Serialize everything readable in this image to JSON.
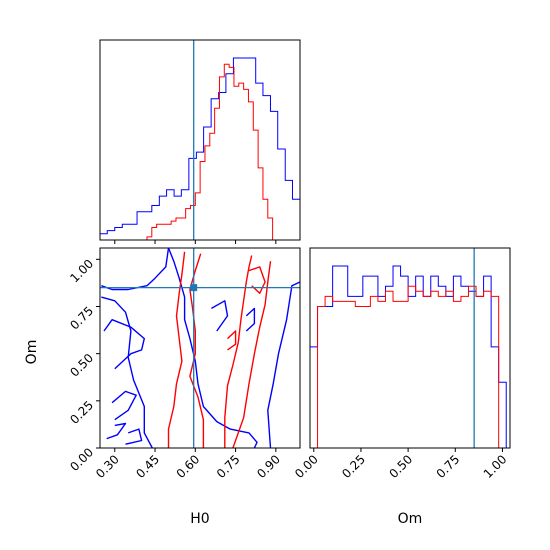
{
  "chart_data": [
    {
      "type": "histogram",
      "panel": "H0 marginal",
      "xlim": [
        0.245,
        0.99
      ],
      "truth": 0.594,
      "x_ticks": [
        "0.30",
        "0.45",
        "0.60",
        "0.75",
        "0.90"
      ],
      "series": [
        {
          "color": "#0000ff",
          "edges": [
            0.245,
            0.272,
            0.3,
            0.328,
            0.355,
            0.383,
            0.41,
            0.438,
            0.466,
            0.493,
            0.521,
            0.548,
            0.576,
            0.604,
            0.631,
            0.659,
            0.687,
            0.714,
            0.742,
            0.769,
            0.797,
            0.825,
            0.852,
            0.88,
            0.907,
            0.935,
            0.962,
            0.99
          ],
          "counts": [
            2,
            3,
            4,
            5,
            5,
            9,
            9,
            11,
            14,
            16,
            14,
            16,
            26,
            28,
            36,
            45,
            47,
            53,
            58,
            58,
            58,
            50,
            46,
            41,
            29,
            19,
            13
          ]
        },
        {
          "color": "#ff0000",
          "edges": [
            0.42,
            0.438,
            0.456,
            0.474,
            0.492,
            0.51,
            0.528,
            0.546,
            0.564,
            0.582,
            0.6,
            0.618,
            0.636,
            0.654,
            0.672,
            0.69,
            0.708,
            0.726,
            0.744,
            0.762,
            0.78,
            0.798,
            0.816,
            0.834,
            0.852,
            0.87,
            0.888
          ],
          "counts": [
            1,
            4,
            5,
            5,
            5,
            6,
            7,
            7,
            10,
            11,
            15,
            25,
            30,
            34,
            42,
            52,
            56,
            55,
            49,
            50,
            48,
            44,
            35,
            23,
            13,
            7
          ]
        }
      ]
    },
    {
      "type": "contour",
      "panel": "H0 vs Om",
      "xlabel": "H0",
      "ylabel": "Om",
      "xlim": [
        0.245,
        0.99
      ],
      "ylim": [
        0.0,
        1.06
      ],
      "x_ticks": [
        "0.30",
        "0.45",
        "0.60",
        "0.75",
        "0.90"
      ],
      "y_ticks": [
        "0.00",
        "0.25",
        "0.50",
        "0.75",
        "1.00"
      ],
      "truth": {
        "x": 0.594,
        "y": 0.85
      },
      "series": [
        {
          "color": "#0000ff",
          "contours": [
            [
              [
                0.25,
                0.86
              ],
              [
                0.29,
                0.84
              ],
              [
                0.35,
                0.84
              ],
              [
                0.42,
                0.86
              ],
              [
                0.45,
                0.9
              ],
              [
                0.49,
                0.96
              ],
              [
                0.5,
                1.06
              ]
            ],
            [
              [
                0.5,
                1.06
              ],
              [
                0.52,
                0.99
              ],
              [
                0.54,
                0.9
              ],
              [
                0.56,
                0.8
              ],
              [
                0.56,
                0.68
              ],
              [
                0.58,
                0.58
              ],
              [
                0.6,
                0.46
              ],
              [
                0.61,
                0.34
              ],
              [
                0.63,
                0.22
              ],
              [
                0.68,
                0.14
              ],
              [
                0.73,
                0.1
              ],
              [
                0.8,
                0.08
              ],
              [
                0.83,
                0.03
              ],
              [
                0.82,
                0.0
              ]
            ],
            [
              [
                0.25,
                0.8
              ],
              [
                0.3,
                0.78
              ],
              [
                0.34,
                0.72
              ],
              [
                0.36,
                0.62
              ],
              [
                0.35,
                0.48
              ],
              [
                0.37,
                0.36
              ],
              [
                0.41,
                0.22
              ],
              [
                0.41,
                0.08
              ],
              [
                0.44,
                0.0
              ]
            ],
            [
              [
                0.88,
                0.0
              ],
              [
                0.87,
                0.2
              ],
              [
                0.89,
                0.34
              ],
              [
                0.91,
                0.5
              ],
              [
                0.94,
                0.68
              ],
              [
                0.96,
                0.86
              ],
              [
                0.99,
                0.88
              ]
            ],
            [
              [
                0.3,
                0.42
              ],
              [
                0.36,
                0.5
              ],
              [
                0.4,
                0.52
              ],
              [
                0.41,
                0.58
              ],
              [
                0.36,
                0.64
              ],
              [
                0.29,
                0.68
              ],
              [
                0.26,
                0.62
              ]
            ],
            [
              [
                0.3,
                0.15
              ],
              [
                0.35,
                0.2
              ],
              [
                0.38,
                0.28
              ],
              [
                0.34,
                0.3
              ],
              [
                0.29,
                0.24
              ]
            ],
            [
              [
                0.27,
                0.05
              ],
              [
                0.31,
                0.07
              ],
              [
                0.34,
                0.13
              ],
              [
                0.3,
                0.12
              ]
            ],
            [
              [
                0.34,
                0.02
              ],
              [
                0.4,
                0.04
              ],
              [
                0.39,
                0.1
              ],
              [
                0.35,
                0.08
              ]
            ],
            [
              [
                0.68,
                0.62
              ],
              [
                0.72,
                0.7
              ],
              [
                0.71,
                0.78
              ],
              [
                0.66,
                0.74
              ]
            ],
            [
              [
                0.79,
                0.62
              ],
              [
                0.82,
                0.66
              ],
              [
                0.82,
                0.74
              ],
              [
                0.79,
                0.7
              ]
            ]
          ]
        },
        {
          "color": "#ff0000",
          "contours": [
            [
              [
                0.5,
                0.0
              ],
              [
                0.5,
                0.1
              ],
              [
                0.52,
                0.22
              ],
              [
                0.53,
                0.34
              ],
              [
                0.55,
                0.46
              ],
              [
                0.54,
                0.58
              ],
              [
                0.53,
                0.7
              ],
              [
                0.54,
                0.82
              ],
              [
                0.55,
                0.92
              ],
              [
                0.56,
                1.04
              ]
            ],
            [
              [
                0.62,
                1.03
              ],
              [
                0.6,
                0.94
              ],
              [
                0.58,
                0.84
              ],
              [
                0.59,
                0.74
              ],
              [
                0.6,
                0.62
              ],
              [
                0.6,
                0.5
              ],
              [
                0.58,
                0.38
              ],
              [
                0.61,
                0.27
              ],
              [
                0.63,
                0.15
              ],
              [
                0.63,
                0.05
              ],
              [
                0.63,
                0.0
              ]
            ],
            [
              [
                0.71,
                0.0
              ],
              [
                0.71,
                0.16
              ],
              [
                0.72,
                0.33
              ],
              [
                0.74,
                0.44
              ],
              [
                0.76,
                0.56
              ],
              [
                0.77,
                0.68
              ],
              [
                0.78,
                0.78
              ],
              [
                0.79,
                0.88
              ],
              [
                0.8,
                0.96
              ],
              [
                0.81,
                1.02
              ]
            ],
            [
              [
                0.74,
                0.0
              ],
              [
                0.78,
                0.16
              ],
              [
                0.8,
                0.34
              ],
              [
                0.82,
                0.5
              ],
              [
                0.84,
                0.64
              ],
              [
                0.86,
                0.76
              ],
              [
                0.87,
                0.88
              ],
              [
                0.88,
                0.99
              ]
            ],
            [
              [
                0.8,
                0.94
              ],
              [
                0.84,
                0.96
              ],
              [
                0.86,
                0.88
              ],
              [
                0.84,
                0.82
              ],
              [
                0.81,
                0.86
              ]
            ],
            [
              [
                0.72,
                0.52
              ],
              [
                0.75,
                0.55
              ],
              [
                0.75,
                0.62
              ],
              [
                0.72,
                0.58
              ]
            ]
          ]
        }
      ]
    },
    {
      "type": "histogram",
      "panel": "Om marginal",
      "xlabel": "Om",
      "xlim": [
        -0.02,
        1.04
      ],
      "truth": 0.85,
      "x_ticks": [
        "0.00",
        "0.25",
        "0.50",
        "0.75",
        "1.00"
      ],
      "series": [
        {
          "color": "#0000ff",
          "edges": [
            -0.02,
            0.02,
            0.06,
            0.1,
            0.14,
            0.18,
            0.22,
            0.26,
            0.3,
            0.34,
            0.38,
            0.42,
            0.46,
            0.5,
            0.54,
            0.58,
            0.62,
            0.66,
            0.7,
            0.74,
            0.78,
            0.82,
            0.86,
            0.9,
            0.94,
            0.98,
            1.02
          ],
          "counts": [
            20,
            28,
            28,
            36,
            36,
            30,
            30,
            34,
            34,
            30,
            32,
            36,
            34,
            30,
            34,
            30,
            34,
            32,
            30,
            34,
            32,
            31,
            30,
            34,
            20,
            13
          ]
        },
        {
          "color": "#ff0000",
          "edges": [
            0.0,
            0.02,
            0.06,
            0.1,
            0.14,
            0.18,
            0.22,
            0.26,
            0.3,
            0.34,
            0.38,
            0.42,
            0.46,
            0.5,
            0.54,
            0.58,
            0.62,
            0.66,
            0.7,
            0.74,
            0.78,
            0.82,
            0.86,
            0.9,
            0.94,
            0.98,
            1.0
          ],
          "counts": [
            0,
            28,
            30,
            29,
            29,
            29,
            28,
            28,
            30,
            29,
            31,
            29,
            29,
            32,
            31,
            30,
            31,
            30,
            31,
            29,
            30,
            32,
            30,
            31,
            30,
            0
          ]
        }
      ]
    }
  ]
}
